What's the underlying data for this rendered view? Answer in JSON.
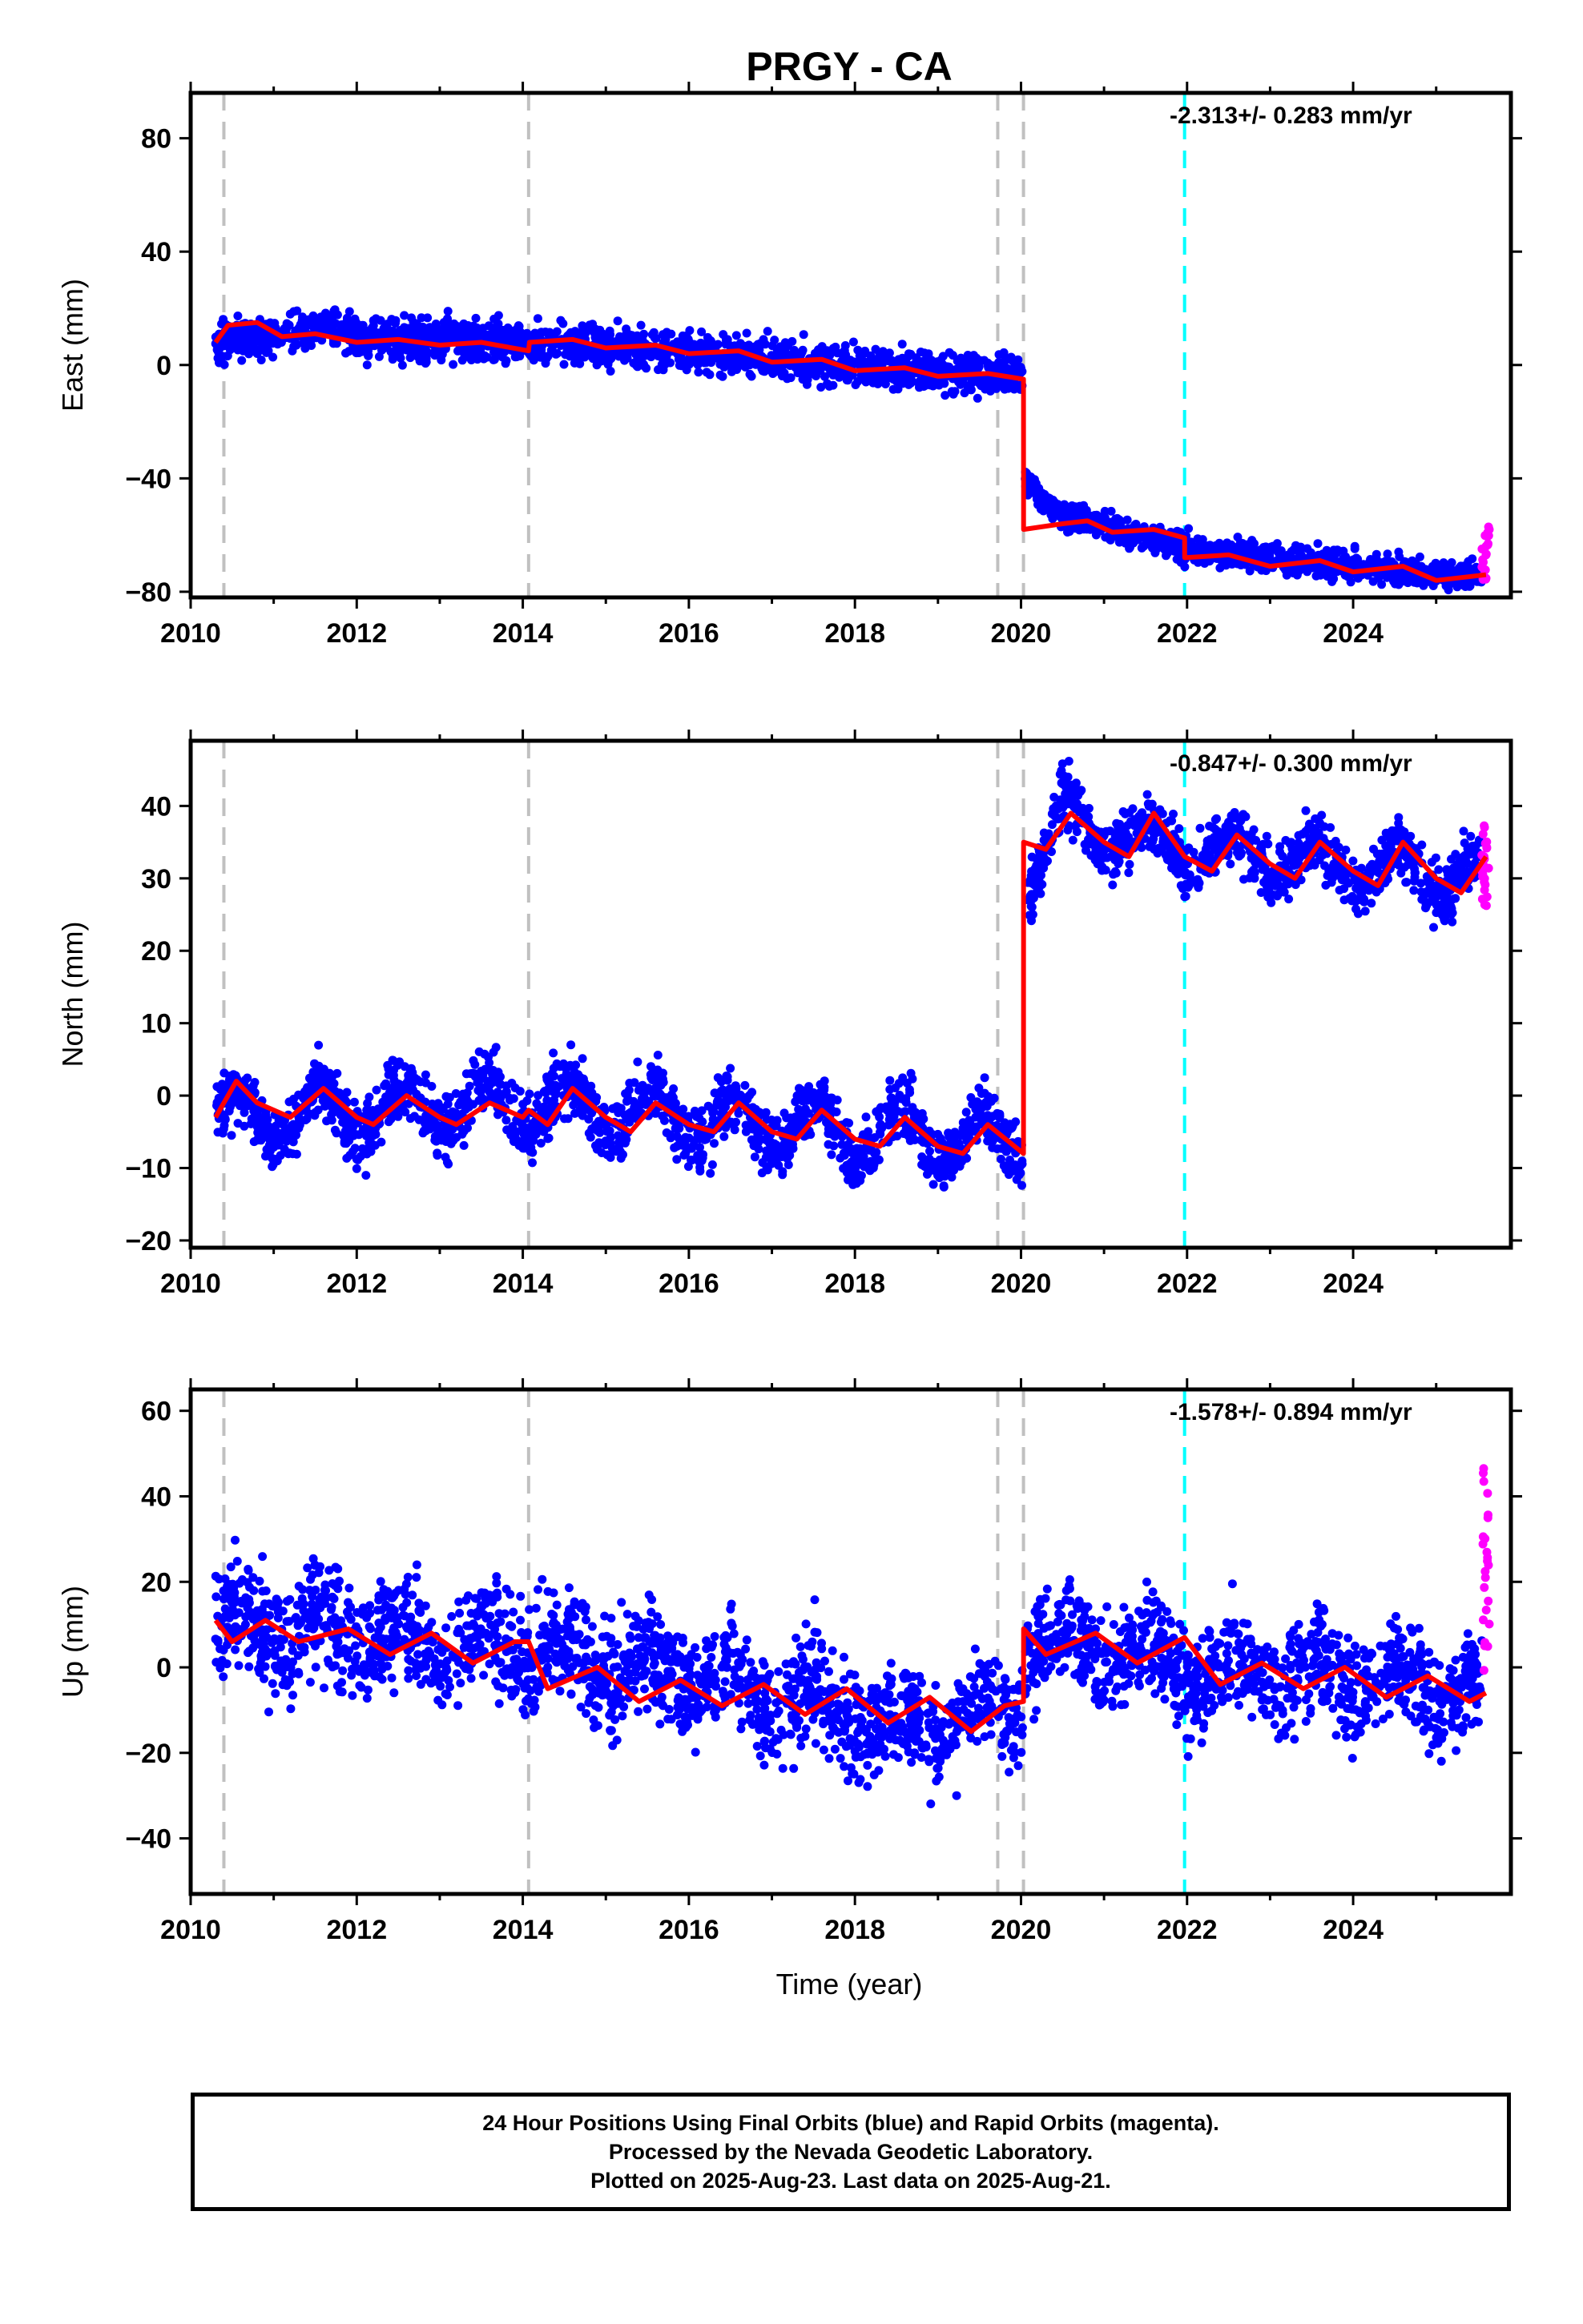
{
  "title": "PRGY - CA",
  "xlabel": "Time (year)",
  "caption": {
    "line1": "24 Hour Positions Using Final Orbits (blue) and Rapid Orbits (magenta).",
    "line2": "Processed by the Nevada Geodetic Laboratory.",
    "line3": "Plotted on 2025-Aug-23. Last data on 2025-Aug-21."
  },
  "colors": {
    "final_orbits": "#0000ff",
    "rapid_orbits": "#ff00ff",
    "model": "#ff0000",
    "equipment_change_lines": "#c0c0c0",
    "cyan_line": "#00ffff"
  },
  "chart_data": [
    {
      "type": "scatter",
      "component": "East",
      "ylabel": "East (mm)",
      "rate_text": "-2.313+/- 0.283 mm/yr",
      "xlim": [
        2010,
        2025.9
      ],
      "ylim": [
        -82,
        96
      ],
      "xticks": [
        2010,
        2012,
        2014,
        2016,
        2018,
        2020,
        2022,
        2024
      ],
      "yticks": [
        -80,
        -40,
        0,
        40,
        80
      ],
      "grey_dashed_lines": [
        2010.4,
        2014.07,
        2019.72,
        2020.03
      ],
      "cyan_dashed_line": 2021.97,
      "offset_at": 2020.03,
      "data_start": 2010.3,
      "data_end": 2025.64,
      "rapid_start": 2025.55,
      "series": [
        {
          "name": "Final Orbits",
          "segments": [
            {
              "from": 2010.3,
              "to": 2020.02,
              "knots": [
                [
                  2010.3,
                  8
                ],
                [
                  2011.0,
                  10
                ],
                [
                  2011.6,
                  14
                ],
                [
                  2012.0,
                  9
                ],
                [
                  2013.0,
                  9
                ],
                [
                  2014.07,
                  8
                ],
                [
                  2015.0,
                  6
                ],
                [
                  2016.0,
                  5
                ],
                [
                  2017.0,
                  2
                ],
                [
                  2018.0,
                  0
                ],
                [
                  2019.0,
                  -2
                ],
                [
                  2020.02,
                  -4
                ]
              ],
              "noise": 3.5
            },
            {
              "from": 2020.05,
              "to": 2025.55,
              "knots": [
                [
                  2020.05,
                  -40
                ],
                [
                  2020.4,
                  -52
                ],
                [
                  2021.0,
                  -57
                ],
                [
                  2022.0,
                  -65
                ],
                [
                  2023.0,
                  -68
                ],
                [
                  2024.0,
                  -71
                ],
                [
                  2025.0,
                  -74
                ],
                [
                  2025.55,
                  -74
                ]
              ],
              "noise": 2.5
            }
          ]
        },
        {
          "name": "Rapid Orbits",
          "values_range": [
            -76,
            -57
          ]
        }
      ],
      "model": [
        [
          2010.3,
          8
        ],
        [
          2010.45,
          14
        ],
        [
          2010.8,
          15
        ],
        [
          2011.1,
          10
        ],
        [
          2011.5,
          11
        ],
        [
          2012.0,
          8
        ],
        [
          2012.5,
          9
        ],
        [
          2013.0,
          7
        ],
        [
          2013.5,
          8
        ],
        [
          2014.07,
          5
        ],
        [
          2014.08,
          8
        ],
        [
          2014.6,
          9
        ],
        [
          2015.0,
          6
        ],
        [
          2015.6,
          7
        ],
        [
          2016.0,
          4
        ],
        [
          2016.6,
          5
        ],
        [
          2017.0,
          1
        ],
        [
          2017.6,
          2
        ],
        [
          2018.0,
          -2
        ],
        [
          2018.6,
          -1
        ],
        [
          2019.0,
          -4
        ],
        [
          2019.6,
          -3
        ],
        [
          2020.03,
          -5
        ],
        [
          2020.031,
          -58
        ],
        [
          2020.5,
          -56
        ],
        [
          2020.8,
          -55
        ],
        [
          2021.1,
          -59
        ],
        [
          2021.6,
          -58
        ],
        [
          2021.97,
          -61
        ],
        [
          2021.971,
          -68
        ],
        [
          2022.5,
          -67
        ],
        [
          2023.0,
          -71
        ],
        [
          2023.6,
          -69
        ],
        [
          2024.0,
          -73
        ],
        [
          2024.6,
          -71
        ],
        [
          2025.0,
          -76
        ],
        [
          2025.6,
          -74
        ]
      ]
    },
    {
      "type": "scatter",
      "component": "North",
      "ylabel": "North (mm)",
      "rate_text": "-0.847+/- 0.300 mm/yr",
      "xlim": [
        2010,
        2025.9
      ],
      "ylim": [
        -21,
        49
      ],
      "xticks": [
        2010,
        2012,
        2014,
        2016,
        2018,
        2020,
        2022,
        2024
      ],
      "yticks": [
        -20,
        -10,
        0,
        10,
        20,
        30,
        40
      ],
      "grey_dashed_lines": [
        2010.4,
        2014.07,
        2019.72,
        2020.03
      ],
      "cyan_dashed_line": 2021.97,
      "offset_at": 2020.03,
      "data_start": 2010.3,
      "data_end": 2025.64,
      "rapid_start": 2025.55,
      "series": [
        {
          "name": "Final Orbits",
          "segments": [
            {
              "from": 2010.3,
              "to": 2020.02,
              "knots": [
                [
                  2010.3,
                  -3
                ],
                [
                  2012.0,
                  -2
                ],
                [
                  2014.0,
                  -1
                ],
                [
                  2016.0,
                  -3
                ],
                [
                  2018.0,
                  -5
                ],
                [
                  2020.02,
                  -6
                ]
              ],
              "noise": 2.2,
              "seasonal": 3.5
            },
            {
              "from": 2020.05,
              "to": 2025.55,
              "knots": [
                [
                  2020.05,
                  30
                ],
                [
                  2020.5,
                  38
                ],
                [
                  2022.0,
                  34
                ],
                [
                  2024.0,
                  32
                ],
                [
                  2025.55,
                  30
                ]
              ],
              "noise": 2.0,
              "seasonal": 3.0
            }
          ]
        },
        {
          "name": "Rapid Orbits",
          "values_range": [
            26,
            38
          ]
        }
      ],
      "model": [
        [
          2010.3,
          -3
        ],
        [
          2010.55,
          2
        ],
        [
          2010.8,
          -1
        ],
        [
          2011.2,
          -3
        ],
        [
          2011.6,
          1
        ],
        [
          2012.0,
          -3
        ],
        [
          2012.2,
          -4
        ],
        [
          2012.6,
          0
        ],
        [
          2013.0,
          -3
        ],
        [
          2013.2,
          -4
        ],
        [
          2013.6,
          -1
        ],
        [
          2014.0,
          -3
        ],
        [
          2014.07,
          -2
        ],
        [
          2014.3,
          -4
        ],
        [
          2014.6,
          1
        ],
        [
          2015.0,
          -3
        ],
        [
          2015.3,
          -5
        ],
        [
          2015.6,
          -1
        ],
        [
          2016.0,
          -4
        ],
        [
          2016.3,
          -5
        ],
        [
          2016.6,
          -1
        ],
        [
          2017.0,
          -5
        ],
        [
          2017.3,
          -6
        ],
        [
          2017.6,
          -2
        ],
        [
          2018.0,
          -6
        ],
        [
          2018.3,
          -7
        ],
        [
          2018.6,
          -3
        ],
        [
          2019.0,
          -7
        ],
        [
          2019.3,
          -8
        ],
        [
          2019.6,
          -4
        ],
        [
          2020.03,
          -8
        ],
        [
          2020.031,
          35
        ],
        [
          2020.3,
          34
        ],
        [
          2020.6,
          39
        ],
        [
          2021.0,
          35
        ],
        [
          2021.3,
          33
        ],
        [
          2021.6,
          39
        ],
        [
          2021.97,
          33
        ],
        [
          2022.3,
          31
        ],
        [
          2022.6,
          36
        ],
        [
          2023.0,
          32
        ],
        [
          2023.3,
          30
        ],
        [
          2023.6,
          35
        ],
        [
          2024.0,
          31
        ],
        [
          2024.3,
          29
        ],
        [
          2024.6,
          35
        ],
        [
          2025.0,
          30
        ],
        [
          2025.3,
          28
        ],
        [
          2025.6,
          33
        ]
      ]
    },
    {
      "type": "scatter",
      "component": "Up",
      "ylabel": "Up (mm)",
      "rate_text": "-1.578+/- 0.894 mm/yr",
      "xlim": [
        2010,
        2025.9
      ],
      "ylim": [
        -53,
        65
      ],
      "xticks": [
        2010,
        2012,
        2014,
        2016,
        2018,
        2020,
        2022,
        2024
      ],
      "yticks": [
        -40,
        -20,
        0,
        20,
        40,
        60
      ],
      "grey_dashed_lines": [
        2010.4,
        2014.07,
        2019.72,
        2020.03
      ],
      "cyan_dashed_line": 2021.97,
      "offset_at": 2020.03,
      "data_start": 2010.3,
      "data_end": 2025.64,
      "rapid_start": 2025.55,
      "series": [
        {
          "name": "Final Orbits",
          "segments": [
            {
              "from": 2010.3,
              "to": 2020.02,
              "knots": [
                [
                  2010.3,
                  10
                ],
                [
                  2012.0,
                  7
                ],
                [
                  2014.0,
                  5
                ],
                [
                  2016.0,
                  -2
                ],
                [
                  2017.5,
                  -8
                ],
                [
                  2018.5,
                  -15
                ],
                [
                  2020.02,
                  -10
                ]
              ],
              "noise": 6.5,
              "seasonal": 4.5
            },
            {
              "from": 2020.05,
              "to": 2025.55,
              "knots": [
                [
                  2020.05,
                  5
                ],
                [
                  2021.0,
                  5
                ],
                [
                  2022.0,
                  0
                ],
                [
                  2024.0,
                  -2
                ],
                [
                  2025.55,
                  -6
                ]
              ],
              "noise": 6.0,
              "seasonal": 4.0
            }
          ]
        },
        {
          "name": "Rapid Orbits",
          "values_range": [
            -8,
            48
          ]
        }
      ],
      "model": [
        [
          2010.3,
          11
        ],
        [
          2010.5,
          6
        ],
        [
          2010.9,
          11
        ],
        [
          2011.3,
          6
        ],
        [
          2011.9,
          9
        ],
        [
          2012.4,
          3
        ],
        [
          2012.9,
          8
        ],
        [
          2013.4,
          1
        ],
        [
          2013.9,
          6
        ],
        [
          2014.07,
          6
        ],
        [
          2014.3,
          -5
        ],
        [
          2014.9,
          0
        ],
        [
          2015.4,
          -8
        ],
        [
          2015.9,
          -3
        ],
        [
          2016.4,
          -9
        ],
        [
          2016.9,
          -4
        ],
        [
          2017.4,
          -11
        ],
        [
          2017.9,
          -5
        ],
        [
          2018.4,
          -13
        ],
        [
          2018.9,
          -7
        ],
        [
          2019.4,
          -15
        ],
        [
          2019.8,
          -9
        ],
        [
          2020.03,
          -8
        ],
        [
          2020.031,
          9
        ],
        [
          2020.3,
          3
        ],
        [
          2020.9,
          8
        ],
        [
          2021.4,
          1
        ],
        [
          2021.97,
          7
        ],
        [
          2022.4,
          -4
        ],
        [
          2022.9,
          1
        ],
        [
          2023.4,
          -5
        ],
        [
          2023.9,
          0
        ],
        [
          2024.4,
          -7
        ],
        [
          2024.9,
          -2
        ],
        [
          2025.4,
          -8
        ],
        [
          2025.6,
          -6
        ]
      ]
    }
  ]
}
